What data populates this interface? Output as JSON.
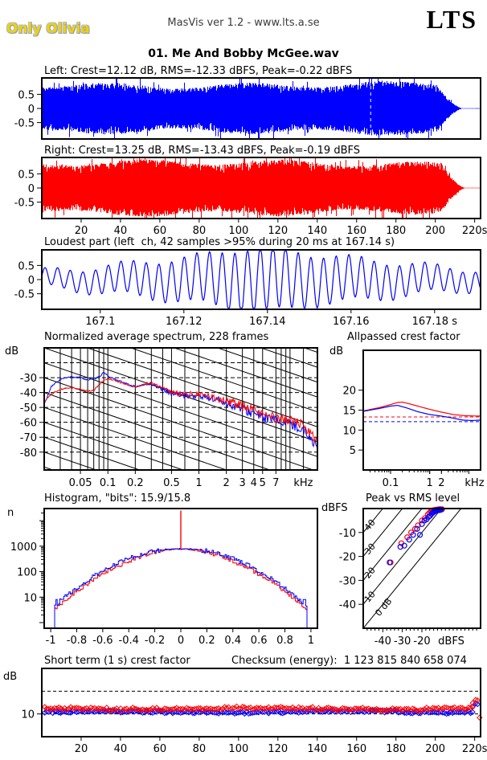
{
  "header": {
    "label": "Only Olivia",
    "app_version": "MasVis ver 1.2 - www.lts.a.se",
    "logo": "LTS",
    "track_title": "01. Me And Bobby McGee.wav"
  },
  "colors": {
    "left_channel": "#0000ff",
    "right_channel": "#ff0000",
    "label_yellow": "#eed200",
    "label_outline": "#8d99bd",
    "text": "#000000"
  },
  "chart_data": {
    "wave_left": {
      "type": "waveform",
      "title": "Left: Crest=12.12 dB, RMS=-12.33 dBFS, Peak=-0.22 dBFS",
      "color": "#0000ff",
      "x_range_s": [
        0,
        223
      ],
      "y_ticks": [
        0.5,
        0,
        -0.5
      ],
      "amplitude": 0.97,
      "fade_start_s": 201,
      "fade_end_s": 214,
      "loudest_marker_s": 167.14
    },
    "wave_right": {
      "type": "waveform",
      "title": "Right: Crest=13.25 dB, RMS=-13.43 dBFS, Peak=-0.19 dBFS",
      "color": "#ff0000",
      "x_range_s": [
        0,
        223
      ],
      "y_ticks": [
        0.5,
        0,
        -0.5
      ],
      "amplitude": 1.0,
      "fade_start_s": 203,
      "fade_end_s": 215.5,
      "x_ticks": [
        [
          20,
          "20"
        ],
        [
          40,
          "40"
        ],
        [
          60,
          "60"
        ],
        [
          80,
          "80"
        ],
        [
          100,
          "100"
        ],
        [
          120,
          "120"
        ],
        [
          140,
          "140"
        ],
        [
          160,
          "160"
        ],
        [
          180,
          "180"
        ],
        [
          200,
          "200"
        ],
        [
          220,
          "220s"
        ]
      ]
    },
    "loudest": {
      "type": "line",
      "title": "Loudest part (left  ch, 42 samples >95% during 20 ms at 167.14 s)",
      "color": "#0000ff",
      "x_range_s": [
        167.086,
        167.191
      ],
      "x_ticks": [
        [
          167.1,
          "167.1"
        ],
        [
          167.12,
          "167.12"
        ],
        [
          167.14,
          "167.14"
        ],
        [
          167.16,
          "167.16"
        ],
        [
          167.18,
          "167.18 s"
        ]
      ],
      "y_ticks": [
        0.5,
        0,
        -0.5
      ],
      "synth": {
        "carrier_hz": 330,
        "env_base": 0.46,
        "env": [
          [
            8.3,
            0.27,
            -1.2
          ],
          [
            2.7,
            0.17,
            0.5
          ]
        ],
        "peak_bump": {
          "center_s": 0.052,
          "width_s": 0.01,
          "amp": 0.25
        },
        "sub": [
          55,
          0.13,
          1.0
        ]
      }
    },
    "spectrum": {
      "type": "spectrum",
      "title": "Normalized average spectrum, 228 frames",
      "ylabel": "dB",
      "x_range_khz": [
        0.02,
        20
      ],
      "y_range_db": [
        -92,
        -10
      ],
      "y_ticks": [
        -30,
        -40,
        -50,
        -60,
        -70,
        -80
      ],
      "x_ticks": [
        [
          0.05,
          "0.05"
        ],
        [
          0.1,
          "0.1"
        ],
        [
          0.2,
          "0.2"
        ],
        [
          0.5,
          "0.5"
        ],
        [
          1,
          "1"
        ],
        [
          2,
          "2"
        ],
        [
          3,
          "3"
        ],
        [
          4,
          "4"
        ],
        [
          5,
          "5"
        ],
        [
          7,
          "7"
        ],
        [
          14,
          "kHz"
        ]
      ],
      "grid_x_khz": [
        0.03,
        0.04,
        0.05,
        0.06,
        0.07,
        0.08,
        0.09,
        0.1,
        0.2,
        0.3,
        0.4,
        0.5,
        0.7,
        1,
        2,
        3,
        4,
        5,
        7,
        8,
        9,
        10,
        14
      ],
      "grid_y_dashed_db": [
        -20,
        -30,
        -40,
        -50,
        -60,
        -70,
        -80
      ],
      "diagonals": {
        "slope_db_per_decade": -21,
        "spacing_db": 10
      },
      "series": [
        {
          "name": "left",
          "color": "#0000ff",
          "anchors": [
            [
              0.02,
              -48
            ],
            [
              0.024,
              -36
            ],
            [
              0.03,
              -31
            ],
            [
              0.04,
              -29.5
            ],
            [
              0.05,
              -30
            ],
            [
              0.06,
              -31.5
            ],
            [
              0.07,
              -31
            ],
            [
              0.08,
              -29.5
            ],
            [
              0.09,
              -26.5
            ],
            [
              0.1,
              -29
            ],
            [
              0.12,
              -31
            ],
            [
              0.15,
              -33.5
            ],
            [
              0.2,
              -36
            ],
            [
              0.25,
              -35
            ],
            [
              0.3,
              -34
            ],
            [
              0.4,
              -38
            ],
            [
              0.5,
              -40.5
            ],
            [
              0.7,
              -42
            ],
            [
              1,
              -42.5
            ],
            [
              1.5,
              -44.5
            ],
            [
              2,
              -47
            ],
            [
              3,
              -51
            ],
            [
              4,
              -54
            ],
            [
              5,
              -56.5
            ],
            [
              7,
              -59
            ],
            [
              10,
              -61
            ],
            [
              13,
              -64
            ],
            [
              16,
              -69
            ],
            [
              18,
              -73
            ],
            [
              20,
              -76
            ]
          ]
        },
        {
          "name": "right",
          "color": "#ff0000",
          "anchors": [
            [
              0.02,
              -46
            ],
            [
              0.024,
              -41
            ],
            [
              0.03,
              -38
            ],
            [
              0.04,
              -36.5
            ],
            [
              0.05,
              -38
            ],
            [
              0.06,
              -39
            ],
            [
              0.07,
              -38.5
            ],
            [
              0.08,
              -35
            ],
            [
              0.09,
              -32
            ],
            [
              0.1,
              -30.5
            ],
            [
              0.12,
              -32
            ],
            [
              0.15,
              -34
            ],
            [
              0.2,
              -36.5
            ],
            [
              0.25,
              -34.5
            ],
            [
              0.3,
              -33.5
            ],
            [
              0.4,
              -37
            ],
            [
              0.5,
              -39.5
            ],
            [
              0.7,
              -41
            ],
            [
              1,
              -41.5
            ],
            [
              1.5,
              -43.5
            ],
            [
              2,
              -45.5
            ],
            [
              3,
              -49
            ],
            [
              4,
              -52
            ],
            [
              5,
              -54.5
            ],
            [
              7,
              -57
            ],
            [
              10,
              -58.5
            ],
            [
              13,
              -61
            ],
            [
              16,
              -66
            ],
            [
              18,
              -70
            ],
            [
              20,
              -75
            ]
          ]
        }
      ]
    },
    "allpassed": {
      "type": "lines",
      "title": "Allpassed crest factor",
      "ylabel": "dB",
      "x_range_khz": [
        0.02,
        20
      ],
      "y_range_db": [
        0,
        30
      ],
      "y_ticks": [
        20,
        15,
        10,
        5
      ],
      "x_ticks": [
        [
          0.1,
          "0.1"
        ],
        [
          1,
          "1"
        ],
        [
          2,
          "2"
        ],
        [
          14,
          "kHz"
        ]
      ],
      "ref_dashed": [
        {
          "color": "#ff0000",
          "db": 13.3
        },
        {
          "color": "#0000ff",
          "db": 12.1
        }
      ],
      "series": [
        {
          "name": "right",
          "color": "#ff0000",
          "anchors": [
            [
              0.02,
              14.8
            ],
            [
              0.05,
              15.6
            ],
            [
              0.1,
              16.4
            ],
            [
              0.15,
              16.9
            ],
            [
              0.2,
              17.0
            ],
            [
              0.3,
              16.6
            ],
            [
              0.5,
              16.0
            ],
            [
              1,
              15.2
            ],
            [
              2,
              14.5
            ],
            [
              4,
              13.9
            ],
            [
              8,
              13.6
            ],
            [
              20,
              13.5
            ]
          ]
        },
        {
          "name": "left",
          "color": "#0000ff",
          "anchors": [
            [
              0.02,
              14.7
            ],
            [
              0.05,
              15.4
            ],
            [
              0.1,
              16.0
            ],
            [
              0.15,
              16.2
            ],
            [
              0.25,
              15.6
            ],
            [
              0.5,
              14.6
            ],
            [
              1,
              13.9
            ],
            [
              2,
              13.5
            ],
            [
              4,
              13.0
            ],
            [
              7,
              12.5
            ],
            [
              12,
              12.4
            ],
            [
              20,
              12.5
            ]
          ]
        }
      ]
    },
    "histogram": {
      "type": "histogram",
      "title": "Histogram, \"bits\": 15.9/15.8",
      "ylabel": "n",
      "x_range": [
        -1.05,
        1.05
      ],
      "x_ticks": [
        [
          -1,
          "-1"
        ],
        [
          -0.8,
          "-0.8"
        ],
        [
          -0.6,
          "-0.6"
        ],
        [
          -0.4,
          "-0.4"
        ],
        [
          -0.2,
          "-0.2"
        ],
        [
          0,
          "0"
        ],
        [
          0.2,
          "0.2"
        ],
        [
          0.4,
          "0.4"
        ],
        [
          0.6,
          "0.6"
        ],
        [
          0.8,
          "0.8"
        ],
        [
          1,
          "1"
        ]
      ],
      "y_ticks": [
        1000,
        100,
        10
      ],
      "y_log_range": [
        0.6,
        30000
      ],
      "peak_n": 780,
      "shape": {
        "width": 0.38,
        "exponent": 1.8
      },
      "cutoff": 0.97,
      "spike": {
        "x": 0,
        "n": 25000,
        "color": "#ff0000"
      },
      "edge_spike_n": 8,
      "series_colors": {
        "left": "#0000ff",
        "right": "#ff0000"
      }
    },
    "peak_vs_rms": {
      "type": "scatter",
      "title": "Peak vs RMS level",
      "ylabel": "dBFS",
      "x_range_dbfs": [
        -50,
        10
      ],
      "y_range_dbfs": [
        -50,
        0
      ],
      "x_ticks": [
        [
          -40,
          "-40"
        ],
        [
          -30,
          "-30"
        ],
        [
          -20,
          "-20"
        ],
        [
          -5,
          "dBFS"
        ]
      ],
      "y_ticks": [
        [
          -10,
          "-10"
        ],
        [
          -20,
          "-20"
        ],
        [
          -30,
          "-30"
        ],
        [
          -40,
          "-40"
        ]
      ],
      "diagonal_labels": [
        [
          40,
          "40"
        ],
        [
          30,
          "30"
        ],
        [
          20,
          "20"
        ],
        [
          10,
          "10"
        ],
        [
          0,
          "0 dB"
        ]
      ],
      "series": [
        {
          "name": "right",
          "color": "#ff0000",
          "points": [
            [
              -36,
              -22.5
            ],
            [
              -30.5,
              -14.5
            ],
            [
              -27.5,
              -12
            ],
            [
              -25.5,
              -10
            ],
            [
              -23.5,
              -8.5
            ],
            [
              -22,
              -7
            ],
            [
              -20,
              -5
            ],
            [
              -18.5,
              -4
            ],
            [
              -17,
              -2.5
            ],
            [
              -16.2,
              -1.8
            ],
            [
              -15.4,
              -1.2
            ],
            [
              -14.8,
              -0.9
            ],
            [
              -14.2,
              -0.7
            ],
            [
              -13.6,
              -1
            ],
            [
              -13.1,
              -0.5
            ],
            [
              -12.6,
              -0.7
            ],
            [
              -12.1,
              -0.4
            ],
            [
              -11.7,
              -0.6
            ],
            [
              -11.3,
              -0.3
            ],
            [
              -10.9,
              -0.5
            ],
            [
              -10.5,
              -0.3
            ],
            [
              -10.1,
              -0.4
            ],
            [
              -9.7,
              -0.3
            ]
          ]
        },
        {
          "name": "left",
          "color": "#0000ff",
          "points": [
            [
              -36.5,
              -22.5
            ],
            [
              -31,
              -16
            ],
            [
              -29,
              -15.5
            ],
            [
              -26.5,
              -13
            ],
            [
              -24.5,
              -11
            ],
            [
              -22.5,
              -8.5
            ],
            [
              -21,
              -11
            ],
            [
              -20,
              -6.5
            ],
            [
              -18.7,
              -5
            ],
            [
              -17.6,
              -4.5
            ],
            [
              -16.6,
              -3.5
            ],
            [
              -15.8,
              -3
            ],
            [
              -15.1,
              -2.2
            ],
            [
              -14.5,
              -1.8
            ],
            [
              -13.9,
              -1.4
            ],
            [
              -13.3,
              -1.1
            ],
            [
              -12.8,
              -0.8
            ],
            [
              -12.3,
              -0.9
            ],
            [
              -11.8,
              -0.6
            ],
            [
              -11.4,
              -0.5
            ],
            [
              -11,
              -0.7
            ],
            [
              -10.6,
              -0.4
            ],
            [
              -10.2,
              -0.5
            ]
          ]
        }
      ]
    },
    "short_term": {
      "type": "scatter-time",
      "title": "Short term (1 s) crest factor",
      "title2": "Checksum (energy):  1 123 815 840 658 074",
      "ylabel": "dB",
      "x_range_s": [
        0,
        223
      ],
      "y_range_db": [
        0,
        30
      ],
      "y_ticks": [
        10
      ],
      "dashed_db": [
        10,
        20
      ],
      "x_ticks": [
        [
          20,
          "20"
        ],
        [
          40,
          "40"
        ],
        [
          60,
          "60"
        ],
        [
          80,
          "80"
        ],
        [
          100,
          "100"
        ],
        [
          120,
          "120"
        ],
        [
          140,
          "140"
        ],
        [
          160,
          "160"
        ],
        [
          180,
          "180"
        ],
        [
          200,
          "200"
        ],
        [
          220,
          "220s"
        ]
      ],
      "series": [
        {
          "name": "left",
          "color": "#0000ff",
          "mean_db": 10.9,
          "spread_db": 0.8,
          "tail": [
            [
              219,
              13.2
            ],
            [
              220.5,
              14.6
            ],
            [
              221.5,
              14.3
            ]
          ]
        },
        {
          "name": "right",
          "color": "#ff0000",
          "mean_db": 12.3,
          "spread_db": 1.0,
          "tail": [
            [
              219,
              14.8
            ],
            [
              220.5,
              16.2
            ],
            [
              221.5,
              16.0
            ],
            [
              222.5,
              8.4
            ]
          ]
        }
      ]
    }
  }
}
